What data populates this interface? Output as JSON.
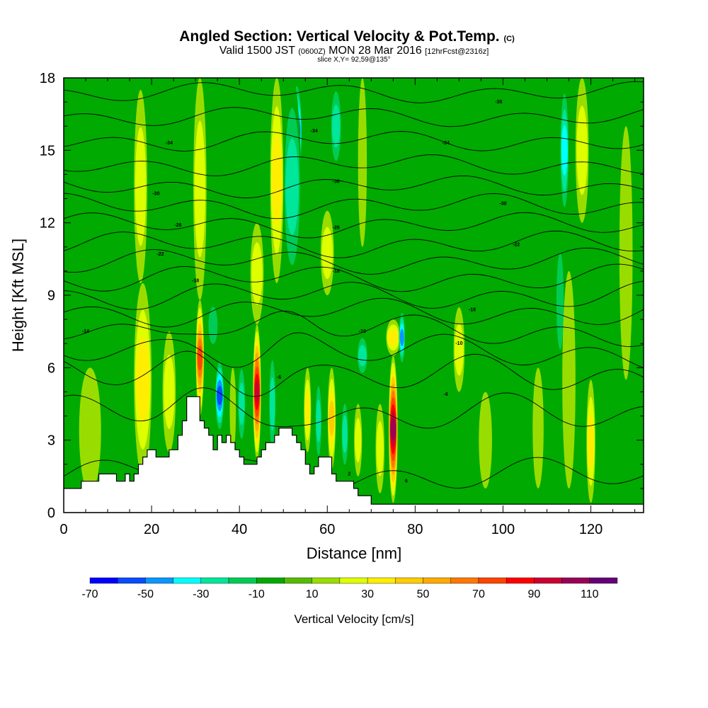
{
  "chart_data": {
    "type": "heatmap",
    "title": "Angled Section: Vertical Velocity & Pot.Temp.",
    "title_units": "(C)",
    "subtitle_pre": "Valid 1500 JST",
    "subtitle_small1": "(0600Z)",
    "subtitle_mid": "MON 28 Mar 2016",
    "subtitle_small2": "[12hrFcst@2316z]",
    "slice_label": "slice X,Y= 92,59@135°",
    "xlabel": "Distance [nm]",
    "ylabel": "Height [Kft MSL]",
    "xlim": [
      0,
      132
    ],
    "ylim": [
      0,
      18
    ],
    "x_ticks": [
      0,
      20,
      40,
      60,
      80,
      100,
      120
    ],
    "x_tick_labels": [
      "0",
      "20",
      "40",
      "60",
      "80",
      "100",
      "120"
    ],
    "y_ticks": [
      0,
      3,
      6,
      9,
      12,
      15,
      18
    ],
    "y_tick_labels": [
      "0",
      "3",
      "6",
      "9",
      "12",
      "15",
      "18"
    ],
    "colorbar": {
      "label": "Vertical Velocity [cm/s]",
      "range": [
        -70,
        120
      ],
      "tick_values": [
        -70,
        -50,
        -30,
        -10,
        10,
        30,
        50,
        70,
        90,
        110
      ],
      "tick_labels": [
        "-70",
        "-50",
        "-30",
        "-10",
        "10",
        "30",
        "50",
        "70",
        "90",
        "110"
      ],
      "colors": [
        "#0000ff",
        "#0a4bff",
        "#0a96ff",
        "#00ffff",
        "#00e69b",
        "#00cc55",
        "#00aa00",
        "#55bb00",
        "#99dd00",
        "#ddff00",
        "#ffee00",
        "#ffcc00",
        "#ffaa00",
        "#ff7700",
        "#ff4400",
        "#ff0000",
        "#cc0033",
        "#990055",
        "#660077"
      ]
    },
    "velocity_features": [
      {
        "x": 18,
        "w": 2.2,
        "y0": 2.6,
        "y1": 8.5,
        "v": 95
      },
      {
        "x": 18,
        "w": 4.0,
        "y0": 1.5,
        "y1": 9.5,
        "v": 40
      },
      {
        "x": 17.5,
        "w": 3.0,
        "y0": 9.5,
        "y1": 17.5,
        "v": 28
      },
      {
        "x": 24,
        "w": 3.0,
        "y0": 2.5,
        "y1": 7.5,
        "v": 30
      },
      {
        "x": 31,
        "w": 1.8,
        "y0": 4.0,
        "y1": 8.8,
        "v": 80
      },
      {
        "x": 31,
        "w": 3.0,
        "y0": 8.8,
        "y1": 18,
        "v": 28
      },
      {
        "x": 35.5,
        "w": 2.0,
        "y0": 3.2,
        "y1": 6.5,
        "v": -55
      },
      {
        "x": 34,
        "w": 2.5,
        "y0": 6.5,
        "y1": 9.0,
        "v": -15
      },
      {
        "x": 38.5,
        "w": 1.4,
        "y0": 2.5,
        "y1": 6.0,
        "v": 15
      },
      {
        "x": 40.5,
        "w": 1.8,
        "y0": 2.5,
        "y1": 6.5,
        "v": -25
      },
      {
        "x": 44,
        "w": 1.8,
        "y0": 2.2,
        "y1": 7.8,
        "v": 95
      },
      {
        "x": 44,
        "w": 3.0,
        "y0": 7.8,
        "y1": 12,
        "v": 25
      },
      {
        "x": 47.5,
        "w": 1.6,
        "y0": 2.0,
        "y1": 7.0,
        "v": -30
      },
      {
        "x": 53,
        "w": 2.5,
        "y0": 13.5,
        "y1": 18,
        "v": -62
      },
      {
        "x": 52,
        "w": 4.0,
        "y0": 9.0,
        "y1": 18,
        "v": -30
      },
      {
        "x": 48.5,
        "w": 3.0,
        "y0": 9.5,
        "y1": 18,
        "v": 42
      },
      {
        "x": 55.5,
        "w": 1.6,
        "y0": 2.5,
        "y1": 6.0,
        "v": 35
      },
      {
        "x": 58,
        "w": 1.5,
        "y0": 1.8,
        "y1": 5.8,
        "v": -30
      },
      {
        "x": 61,
        "w": 1.8,
        "y0": 1.8,
        "y1": 6.0,
        "v": 50
      },
      {
        "x": 60,
        "w": 3.0,
        "y0": 9.0,
        "y1": 12.5,
        "v": 30
      },
      {
        "x": 64,
        "w": 1.6,
        "y0": 1.5,
        "y1": 5.0,
        "v": -25
      },
      {
        "x": 67,
        "w": 1.8,
        "y0": 1.5,
        "y1": 4.5,
        "v": 28
      },
      {
        "x": 68,
        "w": 2.5,
        "y0": 5.5,
        "y1": 7.5,
        "v": -28
      },
      {
        "x": 72,
        "w": 2.0,
        "y0": 0.8,
        "y1": 4.5,
        "v": 25
      },
      {
        "x": 75,
        "w": 2.0,
        "y0": 0.4,
        "y1": 6.5,
        "v": 105
      },
      {
        "x": 75,
        "w": 3.2,
        "y0": 6.5,
        "y1": 8.0,
        "v": 35
      },
      {
        "x": 77,
        "w": 1.4,
        "y0": 6.0,
        "y1": 8.5,
        "v": -45
      },
      {
        "x": 62,
        "w": 2.5,
        "y0": 14.0,
        "y1": 18,
        "v": -25
      },
      {
        "x": 68,
        "w": 2.0,
        "y0": 11.0,
        "y1": 18,
        "v": 14
      },
      {
        "x": 90,
        "w": 2.5,
        "y0": 5.0,
        "y1": 8.5,
        "v": 32
      },
      {
        "x": 96,
        "w": 3.0,
        "y0": 1.0,
        "y1": 5.0,
        "v": 18
      },
      {
        "x": 108,
        "w": 2.5,
        "y0": 1.0,
        "y1": 6.0,
        "v": 14
      },
      {
        "x": 113,
        "w": 2.0,
        "y0": 5.5,
        "y1": 12,
        "v": -22
      },
      {
        "x": 114,
        "w": 2.0,
        "y0": 12,
        "y1": 18,
        "v": -35
      },
      {
        "x": 115,
        "w": 3.0,
        "y0": 1.0,
        "y1": 10,
        "v": 22
      },
      {
        "x": 120,
        "w": 2.0,
        "y0": 0.4,
        "y1": 5.5,
        "v": 40
      },
      {
        "x": 118,
        "w": 3.0,
        "y0": 12,
        "y1": 18,
        "v": 25
      },
      {
        "x": 128,
        "w": 3.0,
        "y0": 5.5,
        "y1": 16,
        "v": 14
      },
      {
        "x": 6,
        "w": 5.0,
        "y0": 0.8,
        "y1": 6.0,
        "v": 15
      },
      {
        "x": 2,
        "w": 3.0,
        "y0": 8.0,
        "y1": 18,
        "v": -14
      },
      {
        "x": 85,
        "w": 3.0,
        "y0": 10,
        "y1": 18,
        "v": -14
      },
      {
        "x": 102,
        "w": 3.0,
        "y0": 10,
        "y1": 18,
        "v": -14
      },
      {
        "x": 125,
        "w": 3.0,
        "y0": 2,
        "y1": 10,
        "v": -14
      }
    ],
    "terrain": [
      [
        0,
        1.0
      ],
      [
        4,
        1.0
      ],
      [
        4,
        1.3
      ],
      [
        8,
        1.3
      ],
      [
        8,
        1.6
      ],
      [
        12,
        1.6
      ],
      [
        12,
        1.3
      ],
      [
        14,
        1.3
      ],
      [
        14,
        1.6
      ],
      [
        15,
        1.6
      ],
      [
        15,
        1.3
      ],
      [
        16,
        1.3
      ],
      [
        16,
        1.6
      ],
      [
        17,
        1.6
      ],
      [
        17,
        2.0
      ],
      [
        18,
        2.0
      ],
      [
        18,
        2.3
      ],
      [
        19,
        2.3
      ],
      [
        19,
        2.6
      ],
      [
        21,
        2.6
      ],
      [
        21,
        2.3
      ],
      [
        24,
        2.3
      ],
      [
        24,
        2.6
      ],
      [
        26,
        2.6
      ],
      [
        26,
        3.2
      ],
      [
        27,
        3.2
      ],
      [
        27,
        3.8
      ],
      [
        28,
        3.8
      ],
      [
        28,
        4.8
      ],
      [
        31,
        4.8
      ],
      [
        31,
        3.8
      ],
      [
        32,
        3.8
      ],
      [
        32,
        3.5
      ],
      [
        33,
        3.5
      ],
      [
        33,
        3.2
      ],
      [
        34,
        3.2
      ],
      [
        34,
        2.6
      ],
      [
        35,
        2.6
      ],
      [
        35,
        3.2
      ],
      [
        36,
        3.2
      ],
      [
        36,
        2.9
      ],
      [
        37,
        2.9
      ],
      [
        37,
        3.2
      ],
      [
        38,
        3.2
      ],
      [
        38,
        2.9
      ],
      [
        39,
        2.9
      ],
      [
        39,
        2.6
      ],
      [
        40,
        2.6
      ],
      [
        40,
        2.3
      ],
      [
        41,
        2.3
      ],
      [
        41,
        2.0
      ],
      [
        44,
        2.0
      ],
      [
        44,
        2.3
      ],
      [
        45,
        2.3
      ],
      [
        45,
        2.6
      ],
      [
        46,
        2.6
      ],
      [
        46,
        2.9
      ],
      [
        48,
        2.9
      ],
      [
        48,
        3.2
      ],
      [
        49,
        3.2
      ],
      [
        49,
        3.5
      ],
      [
        52,
        3.5
      ],
      [
        52,
        3.2
      ],
      [
        53,
        3.2
      ],
      [
        53,
        2.9
      ],
      [
        54,
        2.9
      ],
      [
        54,
        2.6
      ],
      [
        55,
        2.6
      ],
      [
        55,
        2.0
      ],
      [
        56,
        2.0
      ],
      [
        56,
        1.6
      ],
      [
        57,
        1.6
      ],
      [
        57,
        1.9
      ],
      [
        58,
        1.9
      ],
      [
        58,
        2.3
      ],
      [
        61,
        2.3
      ],
      [
        61,
        1.6
      ],
      [
        62,
        1.6
      ],
      [
        62,
        1.3
      ],
      [
        66,
        1.3
      ],
      [
        66,
        1.0
      ],
      [
        67,
        1.0
      ],
      [
        67,
        0.7
      ],
      [
        70,
        0.7
      ],
      [
        70,
        0.35
      ],
      [
        132,
        0.35
      ]
    ],
    "isentropes": [
      {
        "base": 1.5,
        "amp": 0.5
      },
      {
        "base": 4.0,
        "amp": 0.6
      },
      {
        "base": 5.6,
        "amp": 0.6
      },
      {
        "base": 6.6,
        "amp": 0.5
      },
      {
        "base": 7.5,
        "amp": 0.45
      },
      {
        "base": 8.3,
        "amp": 0.4
      },
      {
        "base": 9.0,
        "amp": 0.4
      },
      {
        "base": 9.7,
        "amp": 0.38
      },
      {
        "base": 10.4,
        "amp": 0.35
      },
      {
        "base": 11.1,
        "amp": 0.35
      },
      {
        "base": 11.9,
        "amp": 0.33
      },
      {
        "base": 12.7,
        "amp": 0.33
      },
      {
        "base": 13.5,
        "amp": 0.3
      },
      {
        "base": 14.4,
        "amp": 0.3
      },
      {
        "base": 15.4,
        "amp": 0.3
      },
      {
        "base": 16.4,
        "amp": 0.28
      },
      {
        "base": 17.4,
        "amp": 0.28
      }
    ],
    "contour_labels": [
      {
        "x": 24,
        "y": 15.3,
        "text": "-34"
      },
      {
        "x": 21,
        "y": 13.2,
        "text": "-30"
      },
      {
        "x": 26,
        "y": 11.9,
        "text": "-26"
      },
      {
        "x": 22,
        "y": 10.7,
        "text": "-22"
      },
      {
        "x": 30,
        "y": 9.6,
        "text": "-18"
      },
      {
        "x": 5,
        "y": 7.5,
        "text": "-14"
      },
      {
        "x": 57,
        "y": 15.8,
        "text": "-34"
      },
      {
        "x": 62,
        "y": 13.7,
        "text": "-30"
      },
      {
        "x": 62,
        "y": 11.8,
        "text": "-26"
      },
      {
        "x": 62,
        "y": 10.0,
        "text": "-18"
      },
      {
        "x": 68,
        "y": 7.5,
        "text": "-10"
      },
      {
        "x": 49,
        "y": 5.6,
        "text": "-6"
      },
      {
        "x": 65,
        "y": 1.6,
        "text": "2"
      },
      {
        "x": 78,
        "y": 1.3,
        "text": "6"
      },
      {
        "x": 99,
        "y": 17.0,
        "text": "-38"
      },
      {
        "x": 87,
        "y": 15.3,
        "text": "-34"
      },
      {
        "x": 100,
        "y": 12.8,
        "text": "-30"
      },
      {
        "x": 103,
        "y": 11.1,
        "text": "-22"
      },
      {
        "x": 93,
        "y": 8.4,
        "text": "-18"
      },
      {
        "x": 90,
        "y": 7.0,
        "text": "-10"
      },
      {
        "x": 87,
        "y": 4.9,
        "text": "-6"
      }
    ]
  }
}
